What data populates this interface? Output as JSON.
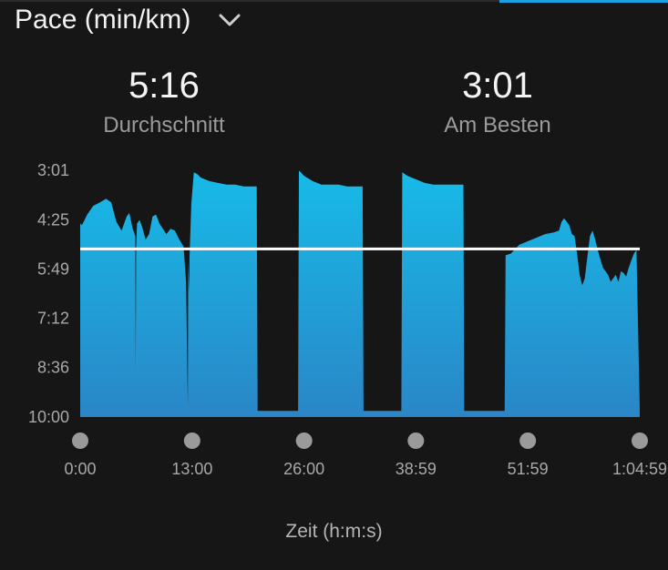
{
  "header": {
    "title": "Pace (min/km)",
    "dropdown_icon": "chevron-down-icon"
  },
  "stats": {
    "average": {
      "value": "5:16",
      "label": "Durchschnitt"
    },
    "best": {
      "value": "3:01",
      "label": "Am Besten"
    }
  },
  "colors": {
    "fill_top": "#17bbe8",
    "fill_bottom": "#2a86c7",
    "average_line": "#ffffff",
    "tick_dot": "#9a9a9a",
    "background": "#161616"
  },
  "chart_data": {
    "type": "area",
    "title": "Pace (min/km)",
    "xlabel": "Zeit (h:m:s)",
    "ylabel": "",
    "y_inverted": true,
    "y_tick_labels": [
      "3:01",
      "4:25",
      "5:49",
      "7:12",
      "8:36",
      "10:00"
    ],
    "y_tick_values": [
      3.017,
      4.417,
      5.817,
      7.2,
      8.6,
      10.0
    ],
    "ylim": [
      3.017,
      10.0
    ],
    "x_tick_labels": [
      "0:00",
      "13:00",
      "26:00",
      "38:59",
      "51:59",
      "1:04:59"
    ],
    "x_tick_values": [
      0,
      13,
      26,
      38.98,
      51.98,
      64.98
    ],
    "xlim": [
      0,
      64.98
    ],
    "x_unit": "minutes",
    "average_pace": 5.267,
    "series": [
      {
        "x": [
          0,
          0.2,
          0.8,
          1.5,
          2.3,
          3.0,
          3.6,
          4.2,
          4.8,
          5.4,
          5.7,
          6.1,
          6.4,
          6.45,
          6.5,
          6.6,
          6.9,
          7.2,
          7.6,
          8.0,
          8.4,
          8.8,
          9.2,
          9.6,
          10.0,
          10.5,
          11.0,
          11.5,
          12.0,
          12.3,
          12.5,
          12.55,
          12.65,
          12.7,
          12.9,
          13.2,
          13.6,
          14.0,
          14.5,
          15.0,
          16.0,
          17.0,
          18.0,
          19.0,
          20.0,
          20.5,
          20.6,
          21.0,
          23.0,
          25.0,
          25.3,
          25.4,
          26.0,
          27.0,
          28.0,
          29.0,
          30.0,
          31.0,
          32.0,
          32.8,
          32.9,
          33.0,
          35.0,
          37.0,
          37.3,
          37.4,
          38.0,
          39.0,
          40.0,
          41.0,
          42.0,
          43.0,
          44.0,
          44.5,
          44.6,
          45.0,
          47.0,
          49.0,
          49.3,
          49.4,
          50.0,
          51.0,
          52.0,
          53.0,
          54.0,
          55.0,
          55.6,
          55.9,
          56.2,
          56.5,
          56.8,
          57.1,
          57.4,
          57.7,
          58.0,
          58.3,
          58.6,
          58.9,
          59.2,
          59.5,
          59.8,
          60.1,
          60.4,
          60.7,
          61.0,
          61.3,
          61.6,
          61.9,
          62.2,
          62.5,
          62.8,
          63.1,
          63.4,
          63.7,
          64.0,
          64.3,
          64.6,
          64.98
        ],
        "y": [
          4.55,
          4.6,
          4.3,
          4.05,
          3.95,
          3.85,
          3.95,
          4.5,
          4.75,
          4.35,
          4.25,
          4.7,
          4.9,
          8.75,
          5.2,
          4.55,
          4.45,
          4.65,
          5.0,
          4.85,
          4.35,
          4.3,
          4.55,
          4.7,
          4.85,
          4.7,
          4.75,
          5.0,
          5.2,
          6.2,
          9.75,
          5.6,
          6.5,
          5.5,
          4.0,
          3.1,
          3.15,
          3.25,
          3.3,
          3.35,
          3.4,
          3.45,
          3.45,
          3.5,
          3.5,
          3.5,
          9.85,
          9.85,
          9.85,
          9.85,
          9.85,
          3.05,
          3.2,
          3.35,
          3.45,
          3.45,
          3.45,
          3.5,
          3.5,
          3.5,
          9.85,
          9.85,
          9.85,
          9.85,
          9.85,
          3.1,
          3.2,
          3.3,
          3.4,
          3.45,
          3.45,
          3.45,
          3.45,
          3.45,
          9.85,
          9.85,
          9.85,
          9.85,
          9.85,
          5.45,
          5.4,
          5.15,
          5.05,
          4.95,
          4.85,
          4.8,
          4.75,
          4.5,
          4.4,
          4.5,
          4.6,
          4.85,
          4.9,
          5.4,
          6.0,
          6.3,
          6.1,
          5.5,
          4.9,
          4.75,
          5.0,
          5.3,
          5.55,
          5.8,
          5.9,
          6.0,
          6.2,
          6.1,
          6.0,
          6.2,
          5.9,
          5.95,
          6.05,
          5.8,
          5.6,
          5.4,
          5.3,
          9.8
        ]
      }
    ]
  }
}
